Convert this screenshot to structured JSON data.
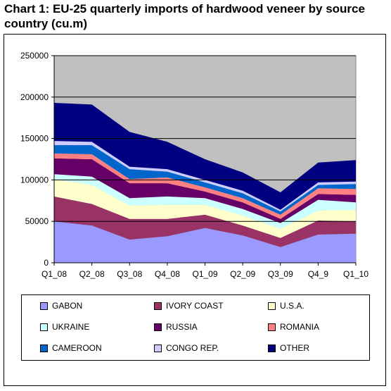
{
  "title": "Chart 1: EU-25 quarterly imports of hardwood veneer by source country (cu.m)",
  "chart_data": {
    "type": "area",
    "stacked": true,
    "categories": [
      "Q1_08",
      "Q2_08",
      "Q3_08",
      "Q4_08",
      "Q1_09",
      "Q2_09",
      "Q3_09",
      "Q4_9",
      "Q1_10"
    ],
    "ylim": [
      0,
      250000
    ],
    "yticks": [
      "0",
      "50000",
      "100000",
      "150000",
      "200000",
      "250000"
    ],
    "grid": true,
    "plot_background": "#c0c0c0",
    "legend_position": "bottom",
    "series": [
      {
        "name": "GABON",
        "color": "#9999ff",
        "values": [
          50000,
          45000,
          28000,
          32000,
          42000,
          33000,
          19000,
          34000,
          35000
        ]
      },
      {
        "name": "IVORY COAST",
        "color": "#993366",
        "values": [
          30000,
          26000,
          25000,
          21000,
          16000,
          12000,
          11000,
          17000,
          15000
        ]
      },
      {
        "name": "U.S.A.",
        "color": "#ffffcc",
        "values": [
          21000,
          23000,
          16000,
          17000,
          12000,
          12000,
          11000,
          12000,
          14000
        ]
      },
      {
        "name": "UKRAINE",
        "color": "#ccffff",
        "values": [
          6000,
          10000,
          9000,
          10000,
          8000,
          8000,
          7000,
          13000,
          9000
        ]
      },
      {
        "name": "RUSSIA",
        "color": "#660066",
        "values": [
          19000,
          21000,
          18000,
          16000,
          8000,
          8000,
          5000,
          7000,
          9000
        ]
      },
      {
        "name": "ROMANIA",
        "color": "#ff8080",
        "values": [
          6000,
          6000,
          5000,
          7000,
          5000,
          5000,
          5000,
          7000,
          7000
        ]
      },
      {
        "name": "CAMEROON",
        "color": "#0066cc",
        "values": [
          10000,
          11000,
          12000,
          7000,
          6000,
          6000,
          4000,
          4000,
          6000
        ]
      },
      {
        "name": "CONGO REP.",
        "color": "#ccccff",
        "values": [
          5000,
          4000,
          3000,
          3000,
          3000,
          3000,
          2000,
          3000,
          3000
        ]
      },
      {
        "name": "OTHER",
        "color": "#000080",
        "values": [
          46000,
          45000,
          42000,
          33000,
          25000,
          22000,
          21000,
          24000,
          26000
        ]
      }
    ]
  }
}
